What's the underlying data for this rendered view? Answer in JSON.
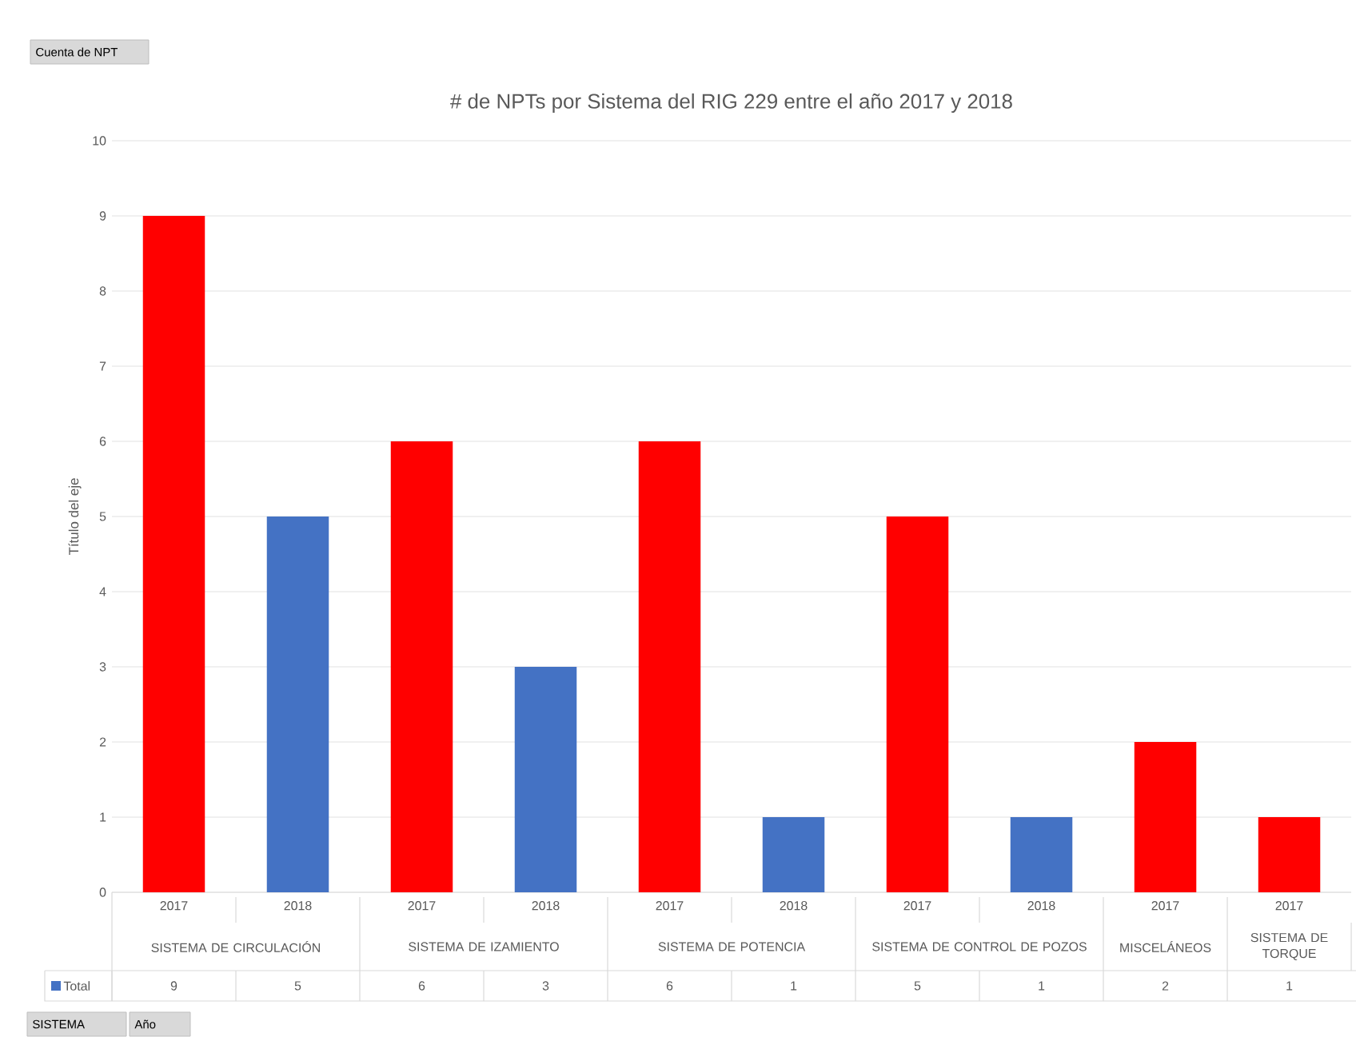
{
  "chart_data": {
    "type": "bar",
    "title": "# de NPTs por Sistema del RIG 229 entre el año 2017 y 2018",
    "categories": [
      "2017",
      "2018",
      "2017",
      "2018",
      "2017",
      "2018",
      "2017",
      "2018",
      "2017",
      "2017"
    ],
    "series": [
      {
        "name": "Total",
        "color": "#4472c4",
        "values": [
          9,
          5,
          6,
          3,
          6,
          1,
          5,
          1,
          2,
          1
        ],
        "colors": [
          "#ff0000",
          "#4472c4",
          "#ff0000",
          "#4472c4",
          "#ff0000",
          "#4472c4",
          "#ff0000",
          "#4472c4",
          "#ff0000",
          "#ff0000"
        ]
      }
    ],
    "ylabel": "Título del eje",
    "ylim": [
      0,
      10
    ],
    "yticks": [
      0,
      1,
      2,
      3,
      4,
      5,
      6,
      7,
      8,
      9,
      10
    ],
    "grid": "y",
    "legend": "bottom",
    "data_labels": true,
    "annotations": [
      "SISTEMA DE CIRCULACIÓN",
      "SISTEMA DE IZAMIENTO",
      "SISTEMA DE POTENCIA",
      "SISTEMA DE CONTROL DE POZOS",
      "MISCELÁNEOS",
      "SISTEMA DE TORQUE",
      "Cuenta de NPT",
      "SISTEMA",
      "Año"
    ]
  }
}
